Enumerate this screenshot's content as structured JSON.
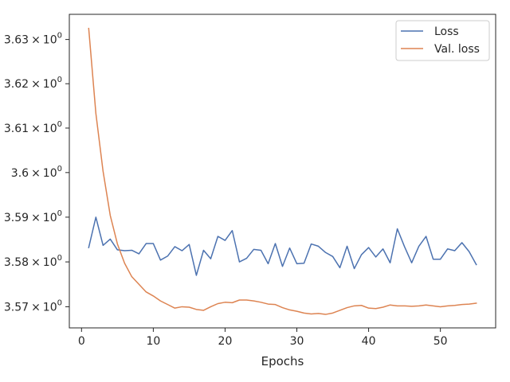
{
  "chart_data": {
    "type": "line",
    "title": "",
    "xlabel": "Epochs",
    "ylabel": "",
    "y_scale": "log",
    "xlim": [
      -1.7,
      57.7
    ],
    "ylim": [
      3.5653,
      3.6357
    ],
    "grid": false,
    "legend_position": "upper right",
    "x_ticks": [
      0,
      10,
      20,
      30,
      40,
      50
    ],
    "x_tick_labels": [
      "0",
      "10",
      "20",
      "30",
      "40",
      "50"
    ],
    "y_ticks": [
      3.57,
      3.58,
      3.59,
      3.6,
      3.61,
      3.62,
      3.63
    ],
    "y_tick_labels": [
      {
        "mantissa": "3.57",
        "times": "×",
        "base": "10",
        "exp": "0"
      },
      {
        "mantissa": "3.58",
        "times": "×",
        "base": "10",
        "exp": "0"
      },
      {
        "mantissa": "3.59",
        "times": "×",
        "base": "10",
        "exp": "0"
      },
      {
        "mantissa": "3.6",
        "times": "×",
        "base": "10",
        "exp": "0"
      },
      {
        "mantissa": "3.61",
        "times": "×",
        "base": "10",
        "exp": "0"
      },
      {
        "mantissa": "3.62",
        "times": "×",
        "base": "10",
        "exp": "0"
      },
      {
        "mantissa": "3.63",
        "times": "×",
        "base": "10",
        "exp": "0"
      }
    ],
    "x": [
      1,
      2,
      3,
      4,
      5,
      6,
      7,
      8,
      9,
      10,
      11,
      12,
      13,
      14,
      15,
      16,
      17,
      18,
      19,
      20,
      21,
      22,
      23,
      24,
      25,
      26,
      27,
      28,
      29,
      30,
      31,
      32,
      33,
      34,
      35,
      36,
      37,
      38,
      39,
      40,
      41,
      42,
      43,
      44,
      45,
      46,
      47,
      48,
      49,
      50,
      51,
      52,
      53,
      54,
      55
    ],
    "series": [
      {
        "name": "Loss",
        "color": "#4c72b0",
        "values": [
          3.5832,
          3.59,
          3.5837,
          3.5851,
          3.5827,
          3.5825,
          3.5826,
          3.5818,
          3.5841,
          3.5841,
          3.5804,
          3.5813,
          3.5834,
          3.5825,
          3.5839,
          3.577,
          3.5826,
          3.5807,
          3.5857,
          3.5848,
          3.587,
          3.58,
          3.5808,
          3.5828,
          3.5826,
          3.5796,
          3.5841,
          3.579,
          3.5831,
          3.5796,
          3.5797,
          3.584,
          3.5835,
          3.5821,
          3.5812,
          3.5787,
          3.5835,
          3.5785,
          3.5816,
          3.5832,
          3.5811,
          3.5829,
          3.5798,
          3.5874,
          3.5834,
          3.5798,
          3.5835,
          3.5857,
          3.5806,
          3.5806,
          3.5829,
          3.5825,
          3.5843,
          3.5823,
          3.5794
        ]
      },
      {
        "name": "Val. loss",
        "color": "#dd8452",
        "values": [
          3.6325,
          3.6133,
          3.6003,
          3.5904,
          3.584,
          3.5797,
          3.5767,
          3.575,
          3.5733,
          3.5724,
          3.5713,
          3.5705,
          3.5697,
          3.57,
          3.5699,
          3.5694,
          3.5692,
          3.57,
          3.5707,
          3.571,
          3.5709,
          3.5715,
          3.5715,
          3.5713,
          3.571,
          3.5706,
          3.5705,
          3.5698,
          3.5693,
          3.569,
          3.5686,
          3.5684,
          3.5685,
          3.5683,
          3.5686,
          3.5692,
          3.5698,
          3.5702,
          3.5703,
          3.5697,
          3.5696,
          3.5699,
          3.5704,
          3.5702,
          3.5702,
          3.5701,
          3.5702,
          3.5704,
          3.5702,
          3.57,
          3.5702,
          3.5703,
          3.5705,
          3.5706,
          3.5708
        ]
      }
    ]
  }
}
